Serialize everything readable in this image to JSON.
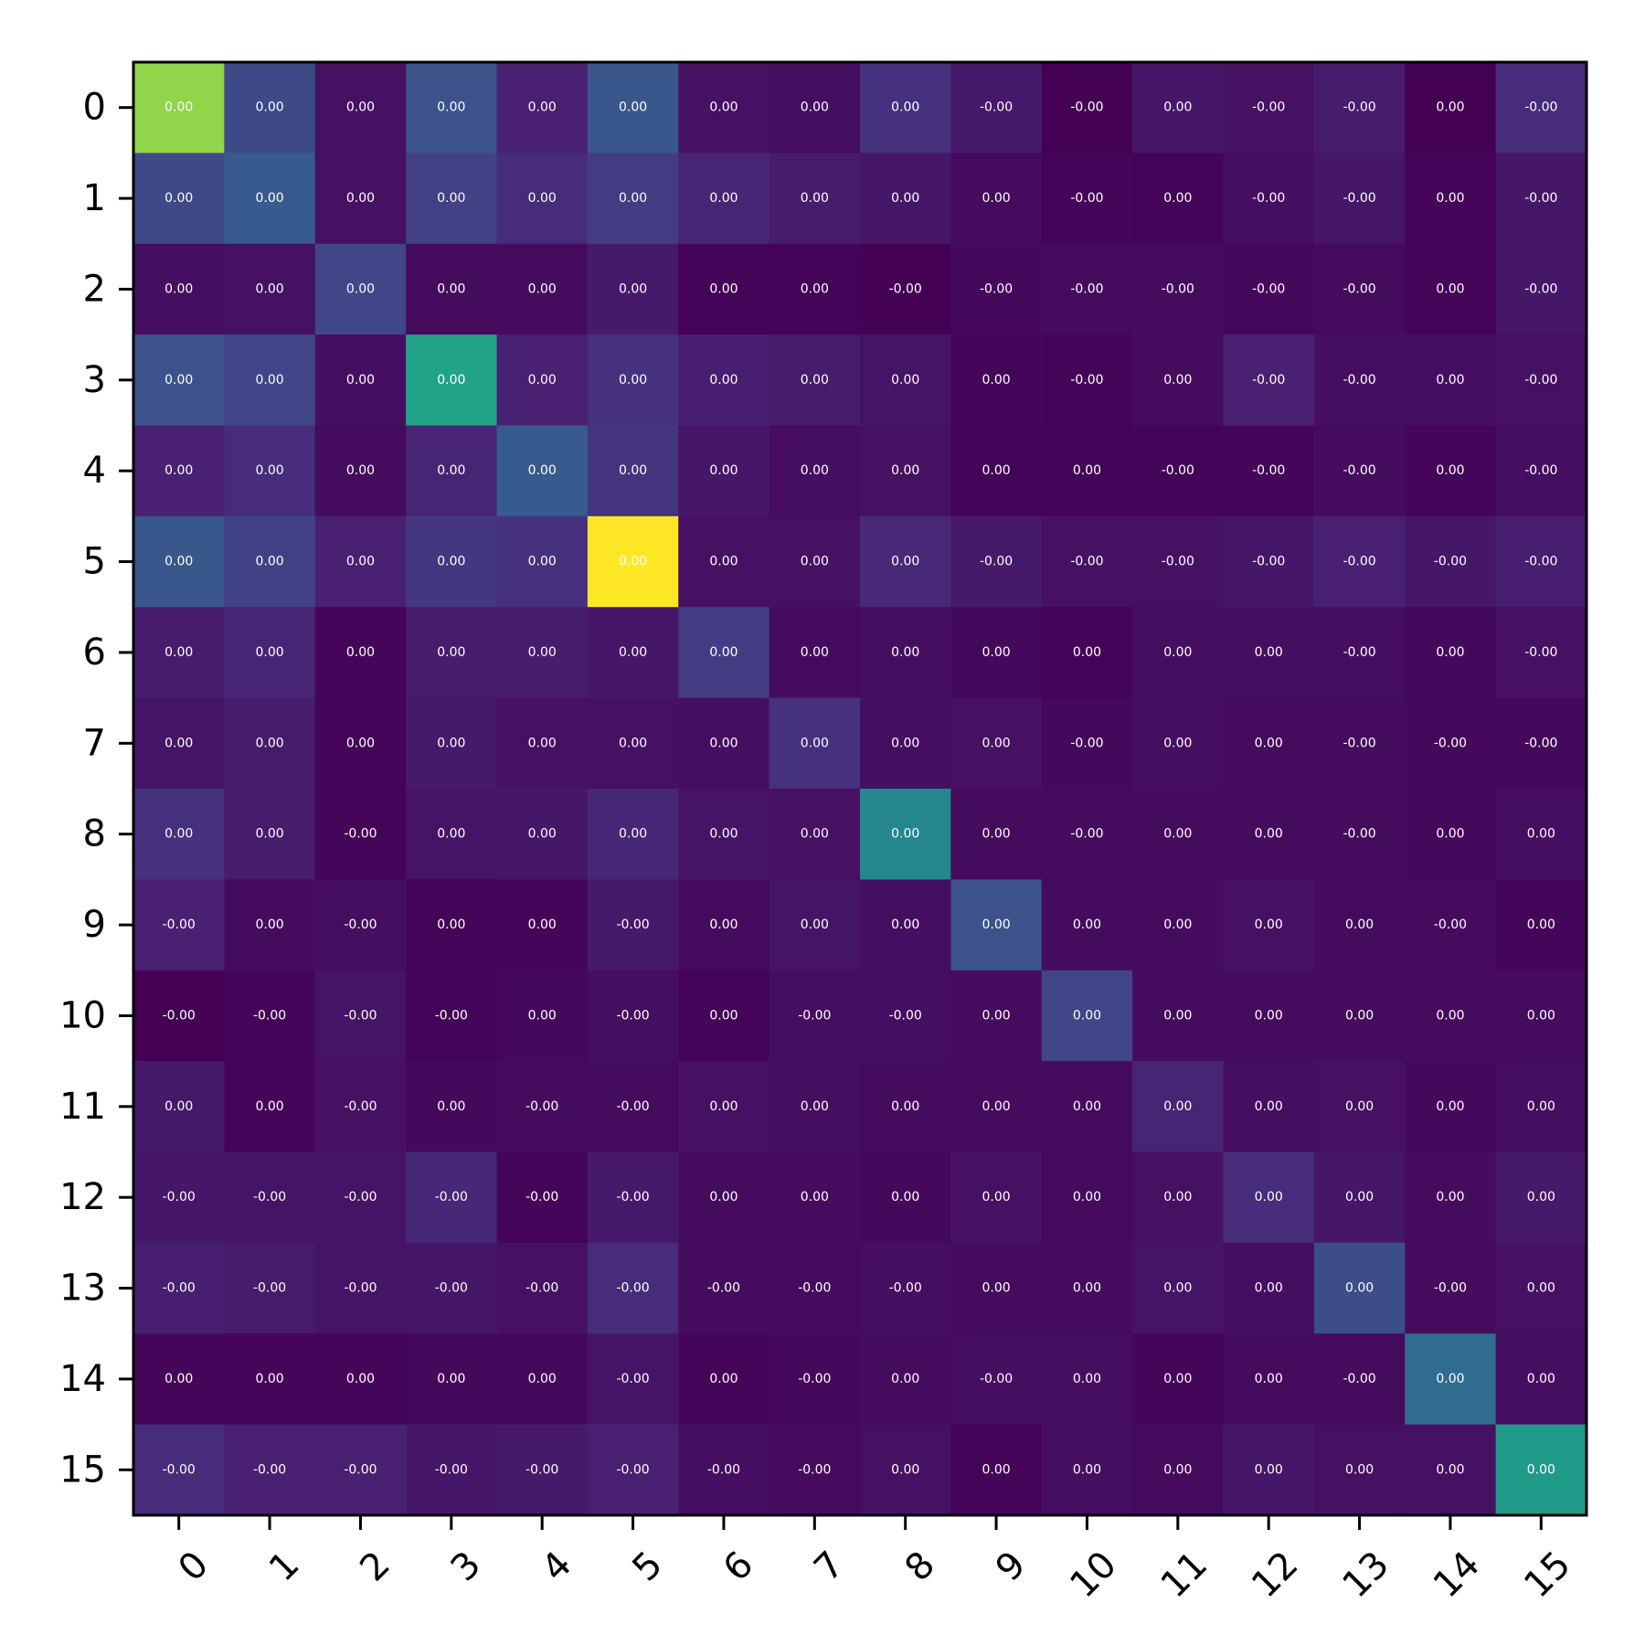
{
  "chart_data": {
    "type": "heatmap",
    "title": "",
    "xlabel": "",
    "ylabel": "",
    "colormap": "viridis",
    "x_categories": [
      "0",
      "1",
      "2",
      "3",
      "4",
      "5",
      "6",
      "7",
      "8",
      "9",
      "10",
      "11",
      "12",
      "13",
      "14",
      "15"
    ],
    "y_categories": [
      "0",
      "1",
      "2",
      "3",
      "4",
      "5",
      "6",
      "7",
      "8",
      "9",
      "10",
      "11",
      "12",
      "13",
      "14",
      "15"
    ],
    "intensity_range": [
      0,
      1
    ],
    "intensity": [
      [
        0.9,
        0.28,
        0.06,
        0.32,
        0.12,
        0.34,
        0.06,
        0.05,
        0.18,
        0.09,
        0.0,
        0.08,
        0.06,
        0.1,
        0.0,
        0.16
      ],
      [
        0.28,
        0.36,
        0.06,
        0.24,
        0.16,
        0.22,
        0.13,
        0.1,
        0.08,
        0.04,
        0.02,
        0.01,
        0.05,
        0.08,
        0.02,
        0.08
      ],
      [
        0.05,
        0.06,
        0.26,
        0.04,
        0.04,
        0.09,
        0.01,
        0.01,
        0.0,
        0.03,
        0.04,
        0.04,
        0.03,
        0.04,
        0.01,
        0.08
      ],
      [
        0.32,
        0.26,
        0.05,
        0.72,
        0.12,
        0.18,
        0.11,
        0.1,
        0.07,
        0.02,
        0.01,
        0.04,
        0.12,
        0.05,
        0.05,
        0.06
      ],
      [
        0.12,
        0.16,
        0.04,
        0.13,
        0.36,
        0.19,
        0.08,
        0.05,
        0.06,
        0.01,
        0.01,
        0.01,
        0.02,
        0.04,
        0.02,
        0.05
      ],
      [
        0.34,
        0.24,
        0.12,
        0.2,
        0.18,
        1.0,
        0.06,
        0.06,
        0.15,
        0.09,
        0.06,
        0.06,
        0.08,
        0.12,
        0.08,
        0.11
      ],
      [
        0.1,
        0.13,
        0.02,
        0.1,
        0.1,
        0.08,
        0.22,
        0.04,
        0.05,
        0.03,
        0.01,
        0.05,
        0.05,
        0.05,
        0.03,
        0.06
      ],
      [
        0.07,
        0.1,
        0.01,
        0.09,
        0.06,
        0.06,
        0.05,
        0.18,
        0.05,
        0.06,
        0.03,
        0.05,
        0.04,
        0.04,
        0.03,
        0.03
      ],
      [
        0.18,
        0.1,
        0.01,
        0.07,
        0.08,
        0.14,
        0.07,
        0.06,
        0.58,
        0.04,
        0.04,
        0.04,
        0.04,
        0.04,
        0.03,
        0.05
      ],
      [
        0.12,
        0.04,
        0.05,
        0.01,
        0.02,
        0.09,
        0.04,
        0.07,
        0.05,
        0.32,
        0.04,
        0.04,
        0.06,
        0.04,
        0.04,
        0.02
      ],
      [
        0.0,
        0.02,
        0.07,
        0.01,
        0.03,
        0.05,
        0.01,
        0.05,
        0.05,
        0.04,
        0.26,
        0.04,
        0.04,
        0.04,
        0.04,
        0.04
      ],
      [
        0.09,
        0.01,
        0.06,
        0.03,
        0.04,
        0.04,
        0.06,
        0.05,
        0.04,
        0.04,
        0.04,
        0.13,
        0.05,
        0.06,
        0.03,
        0.05
      ],
      [
        0.08,
        0.07,
        0.07,
        0.14,
        0.02,
        0.09,
        0.04,
        0.04,
        0.03,
        0.06,
        0.04,
        0.06,
        0.16,
        0.08,
        0.04,
        0.09
      ],
      [
        0.11,
        0.1,
        0.07,
        0.08,
        0.06,
        0.16,
        0.04,
        0.04,
        0.05,
        0.04,
        0.04,
        0.07,
        0.05,
        0.3,
        0.04,
        0.06
      ],
      [
        0.02,
        0.02,
        0.02,
        0.03,
        0.03,
        0.07,
        0.02,
        0.03,
        0.04,
        0.05,
        0.05,
        0.02,
        0.04,
        0.04,
        0.44,
        0.05
      ],
      [
        0.16,
        0.12,
        0.12,
        0.08,
        0.09,
        0.12,
        0.05,
        0.04,
        0.06,
        0.01,
        0.05,
        0.04,
        0.08,
        0.06,
        0.06,
        0.68
      ]
    ],
    "cell_labels": [
      [
        "0.00",
        "0.00",
        "0.00",
        "0.00",
        "0.00",
        "0.00",
        "0.00",
        "0.00",
        "0.00",
        "-0.00",
        "-0.00",
        "0.00",
        "-0.00",
        "-0.00",
        "0.00",
        "-0.00"
      ],
      [
        "0.00",
        "0.00",
        "0.00",
        "0.00",
        "0.00",
        "0.00",
        "0.00",
        "0.00",
        "0.00",
        "0.00",
        "-0.00",
        "0.00",
        "-0.00",
        "-0.00",
        "0.00",
        "-0.00"
      ],
      [
        "0.00",
        "0.00",
        "0.00",
        "0.00",
        "0.00",
        "0.00",
        "0.00",
        "0.00",
        "-0.00",
        "-0.00",
        "-0.00",
        "-0.00",
        "-0.00",
        "-0.00",
        "0.00",
        "-0.00"
      ],
      [
        "0.00",
        "0.00",
        "0.00",
        "0.00",
        "0.00",
        "0.00",
        "0.00",
        "0.00",
        "0.00",
        "0.00",
        "-0.00",
        "0.00",
        "-0.00",
        "-0.00",
        "0.00",
        "-0.00"
      ],
      [
        "0.00",
        "0.00",
        "0.00",
        "0.00",
        "0.00",
        "0.00",
        "0.00",
        "0.00",
        "0.00",
        "0.00",
        "0.00",
        "-0.00",
        "-0.00",
        "-0.00",
        "0.00",
        "-0.00"
      ],
      [
        "0.00",
        "0.00",
        "0.00",
        "0.00",
        "0.00",
        "0.00",
        "0.00",
        "0.00",
        "0.00",
        "-0.00",
        "-0.00",
        "-0.00",
        "-0.00",
        "-0.00",
        "-0.00",
        "-0.00"
      ],
      [
        "0.00",
        "0.00",
        "0.00",
        "0.00",
        "0.00",
        "0.00",
        "0.00",
        "0.00",
        "0.00",
        "0.00",
        "0.00",
        "0.00",
        "0.00",
        "-0.00",
        "0.00",
        "-0.00"
      ],
      [
        "0.00",
        "0.00",
        "0.00",
        "0.00",
        "0.00",
        "0.00",
        "0.00",
        "0.00",
        "0.00",
        "0.00",
        "-0.00",
        "0.00",
        "0.00",
        "-0.00",
        "-0.00",
        "-0.00"
      ],
      [
        "0.00",
        "0.00",
        "-0.00",
        "0.00",
        "0.00",
        "0.00",
        "0.00",
        "0.00",
        "0.00",
        "0.00",
        "-0.00",
        "0.00",
        "0.00",
        "-0.00",
        "0.00",
        "0.00"
      ],
      [
        "-0.00",
        "0.00",
        "-0.00",
        "0.00",
        "0.00",
        "-0.00",
        "0.00",
        "0.00",
        "0.00",
        "0.00",
        "0.00",
        "0.00",
        "0.00",
        "0.00",
        "-0.00",
        "0.00"
      ],
      [
        "-0.00",
        "-0.00",
        "-0.00",
        "-0.00",
        "0.00",
        "-0.00",
        "0.00",
        "-0.00",
        "-0.00",
        "0.00",
        "0.00",
        "0.00",
        "0.00",
        "0.00",
        "0.00",
        "0.00"
      ],
      [
        "0.00",
        "0.00",
        "-0.00",
        "0.00",
        "-0.00",
        "-0.00",
        "0.00",
        "0.00",
        "0.00",
        "0.00",
        "0.00",
        "0.00",
        "0.00",
        "0.00",
        "0.00",
        "0.00"
      ],
      [
        "-0.00",
        "-0.00",
        "-0.00",
        "-0.00",
        "-0.00",
        "-0.00",
        "0.00",
        "0.00",
        "0.00",
        "0.00",
        "0.00",
        "0.00",
        "0.00",
        "0.00",
        "0.00",
        "0.00"
      ],
      [
        "-0.00",
        "-0.00",
        "-0.00",
        "-0.00",
        "-0.00",
        "-0.00",
        "-0.00",
        "-0.00",
        "-0.00",
        "0.00",
        "0.00",
        "0.00",
        "0.00",
        "0.00",
        "-0.00",
        "0.00"
      ],
      [
        "0.00",
        "0.00",
        "0.00",
        "0.00",
        "0.00",
        "-0.00",
        "0.00",
        "-0.00",
        "0.00",
        "-0.00",
        "0.00",
        "0.00",
        "0.00",
        "-0.00",
        "0.00",
        "0.00"
      ],
      [
        "-0.00",
        "-0.00",
        "-0.00",
        "-0.00",
        "-0.00",
        "-0.00",
        "-0.00",
        "-0.00",
        "0.00",
        "0.00",
        "0.00",
        "0.00",
        "0.00",
        "0.00",
        "0.00",
        "0.00"
      ]
    ],
    "grid": false,
    "legend": "none"
  }
}
